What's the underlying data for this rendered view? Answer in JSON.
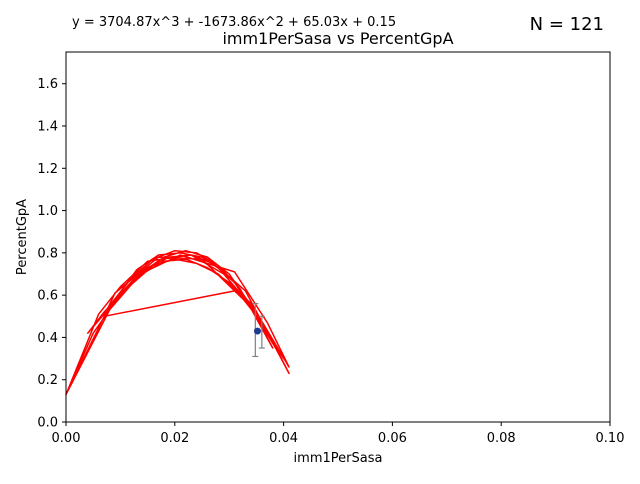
{
  "chart_data": {
    "type": "line",
    "title": "imm1PerSasa vs PercentGpA",
    "xlabel": "imm1PerSasa",
    "ylabel": "PercentGpA",
    "xlim": [
      0,
      0.1
    ],
    "ylim": [
      0,
      1.75
    ],
    "x_ticks": [
      "0.00",
      "0.02",
      "0.04",
      "0.06",
      "0.08",
      "0.10"
    ],
    "x_tick_values": [
      0,
      0.02,
      0.04,
      0.06,
      0.08,
      0.1
    ],
    "y_ticks": [
      "0.0",
      "0.2",
      "0.4",
      "0.6",
      "0.8",
      "1.0",
      "1.2",
      "1.4",
      "1.6"
    ],
    "y_tick_values": [
      0,
      0.2,
      0.4,
      0.6,
      0.8,
      1.0,
      1.2,
      1.4,
      1.6
    ],
    "equation": "y = 3704.87x^3 + -1673.86x^2 + 65.03x + 0.15",
    "n_label": "N = 121",
    "grid": false,
    "fit_coefficients": {
      "a3": 3704.87,
      "a2": -1673.86,
      "a1": 65.03,
      "a0": 0.15
    },
    "series": [
      {
        "color": "#ff0000",
        "x": [
          0.0,
          0.005,
          0.008,
          0.012,
          0.016,
          0.02,
          0.024,
          0.028,
          0.032,
          0.036,
          0.04,
          0.034,
          0.03,
          0.026,
          0.022,
          0.018,
          0.014,
          0.01,
          0.006,
          0.004,
          0.007,
          0.011,
          0.015,
          0.019,
          0.023,
          0.027,
          0.031,
          0.035,
          0.039,
          0.041,
          0.033,
          0.029,
          0.025,
          0.021,
          0.017,
          0.013,
          0.009,
          0.0,
          0.008,
          0.013,
          0.018,
          0.022,
          0.026,
          0.03,
          0.034,
          0.038,
          0.032,
          0.028,
          0.024,
          0.02,
          0.016,
          0.012,
          0.008,
          0.005,
          0.012,
          0.021,
          0.031,
          0.037,
          0.041,
          0.035,
          0.025,
          0.017,
          0.009,
          0.007,
          0.031,
          0.033,
          0.029,
          0.023,
          0.015,
          0.01,
          0.006,
          0.0
        ],
        "y": [
          0.13,
          0.42,
          0.53,
          0.65,
          0.74,
          0.77,
          0.75,
          0.7,
          0.6,
          0.47,
          0.3,
          0.56,
          0.66,
          0.73,
          0.77,
          0.76,
          0.7,
          0.6,
          0.48,
          0.42,
          0.52,
          0.63,
          0.73,
          0.78,
          0.79,
          0.75,
          0.66,
          0.5,
          0.33,
          0.23,
          0.62,
          0.71,
          0.78,
          0.8,
          0.79,
          0.72,
          0.58,
          0.13,
          0.55,
          0.69,
          0.78,
          0.81,
          0.78,
          0.7,
          0.55,
          0.35,
          0.63,
          0.74,
          0.8,
          0.81,
          0.77,
          0.68,
          0.55,
          0.45,
          0.68,
          0.79,
          0.71,
          0.47,
          0.26,
          0.52,
          0.77,
          0.78,
          0.61,
          0.5,
          0.62,
          0.58,
          0.7,
          0.79,
          0.76,
          0.64,
          0.51,
          0.13
        ]
      }
    ],
    "point": {
      "x": 0.0352,
      "y": 0.43,
      "color": "#1f3a93"
    },
    "error_bars": [
      {
        "x": 0.0348,
        "y": 0.43,
        "low": 0.31,
        "high": 0.56
      },
      {
        "x": 0.036,
        "y": 0.42,
        "low": 0.35,
        "high": 0.5
      }
    ]
  }
}
